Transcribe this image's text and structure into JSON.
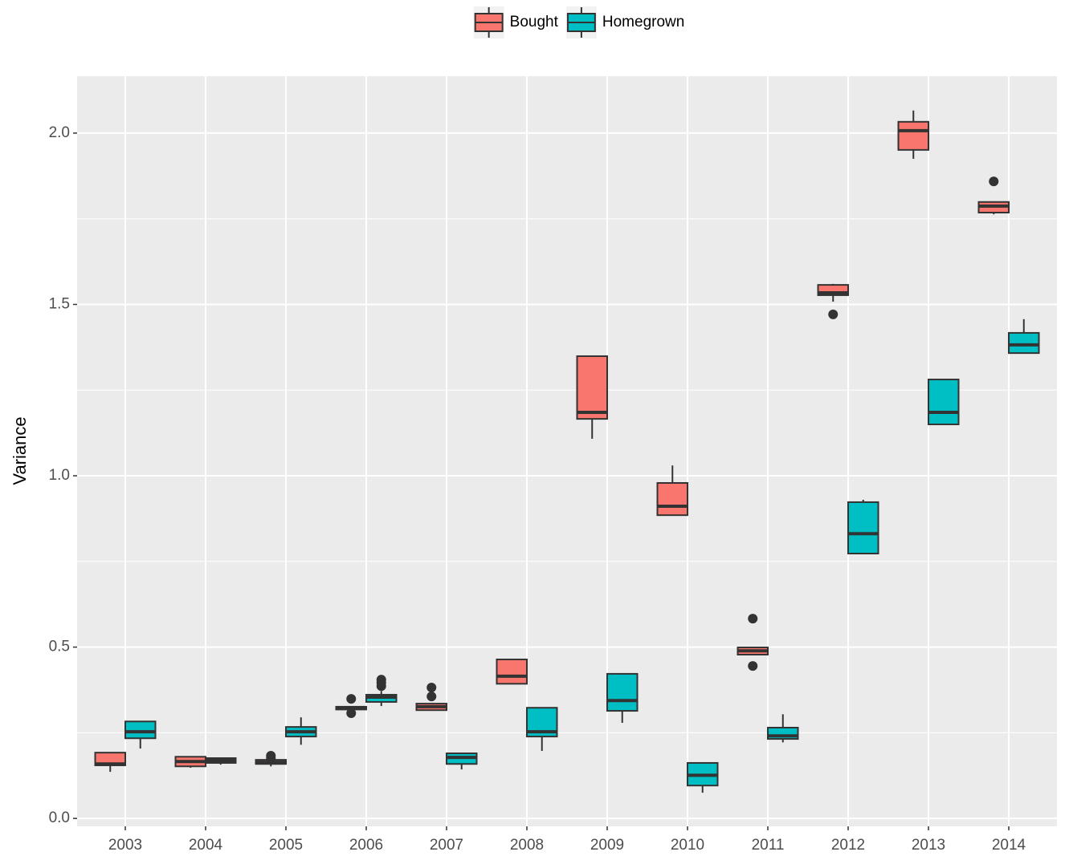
{
  "chart_data": {
    "type": "boxplot",
    "y_label": "Variance",
    "categories": [
      "2003",
      "2004",
      "2005",
      "2006",
      "2007",
      "2008",
      "2009",
      "2010",
      "2011",
      "2012",
      "2013",
      "2014"
    ],
    "ylim": [
      -0.023,
      2.166
    ],
    "yticks": [
      {
        "value": 0,
        "label": "0.0"
      },
      0.5,
      {
        "value": 1,
        "label": "1.0"
      },
      1.5,
      {
        "value": 2,
        "label": "2.0"
      }
    ],
    "minor_yticks": [
      0.25,
      0.75,
      1.25,
      1.75
    ],
    "grid": true,
    "legend": "top",
    "series": [
      {
        "name": "Bought",
        "color": "#f8766d",
        "low": [
          0.136,
          0.148,
          0.152,
          0.316,
          0.314,
          0.391,
          1.108,
          0.885,
          0.478,
          1.508,
          1.925,
          1.763
        ],
        "q1": [
          0.155,
          0.152,
          0.159,
          0.318,
          0.316,
          0.393,
          1.166,
          0.885,
          0.478,
          1.527,
          1.951,
          1.768
        ],
        "median": [
          0.159,
          0.166,
          0.164,
          0.321,
          0.326,
          0.415,
          1.185,
          0.911,
          0.489,
          1.534,
          2.007,
          1.787
        ],
        "q3": [
          0.192,
          0.18,
          0.171,
          0.326,
          0.335,
          0.464,
          1.349,
          0.979,
          0.499,
          1.557,
          2.033,
          1.799
        ],
        "high": [
          0.192,
          0.18,
          0.171,
          0.326,
          0.335,
          0.464,
          1.349,
          1.03,
          0.499,
          1.56,
          2.066,
          1.801
        ],
        "outliers": [
          [],
          [],
          [
            0.183,
            0.176
          ],
          [
            0.349,
            0.307
          ],
          [
            0.382,
            0.356
          ],
          [],
          [],
          [],
          [
            0.583,
            0.445
          ],
          [
            1.471
          ],
          [],
          [
            1.859
          ]
        ]
      },
      {
        "name": "Homegrown",
        "color": "#00bfc4",
        "low": [
          0.204,
          0.157,
          0.215,
          0.328,
          0.143,
          0.197,
          0.279,
          0.075,
          0.222,
          0.773,
          1.15,
          1.358
        ],
        "q1": [
          0.234,
          0.162,
          0.239,
          0.34,
          0.159,
          0.239,
          0.314,
          0.096,
          0.232,
          0.773,
          1.15,
          1.358
        ],
        "median": [
          0.253,
          0.169,
          0.253,
          0.354,
          0.178,
          0.253,
          0.344,
          0.126,
          0.241,
          0.831,
          1.185,
          1.382
        ],
        "q3": [
          0.283,
          0.176,
          0.267,
          0.361,
          0.19,
          0.323,
          0.422,
          0.162,
          0.265,
          0.923,
          1.281,
          1.417
        ],
        "high": [
          0.283,
          0.178,
          0.295,
          0.372,
          0.19,
          0.323,
          0.422,
          0.162,
          0.304,
          0.93,
          1.283,
          1.457
        ],
        "outliers": [
          [],
          [],
          [],
          [
            0.405,
            0.396,
            0.386
          ],
          [],
          [],
          [],
          [],
          [],
          [],
          [],
          []
        ]
      }
    ]
  }
}
